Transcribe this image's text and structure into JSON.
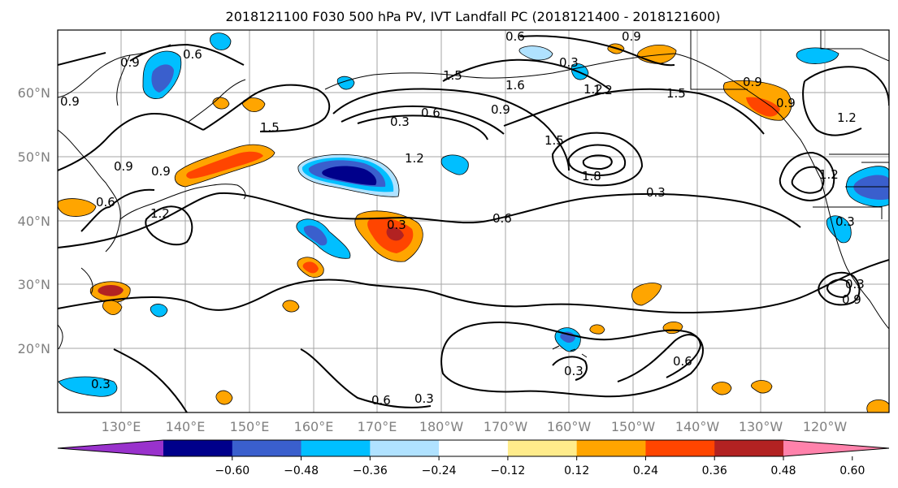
{
  "title": "2018121100 F030 500 hPa PV, IVT Landfall PC (2018121400 - 2018121600)",
  "lat_labels": [
    "60°N",
    "50°N",
    "40°N",
    "30°N",
    "20°N"
  ],
  "lon_labels": [
    "130°E",
    "140°E",
    "150°E",
    "160°E",
    "170°E",
    "180°W",
    "170°W",
    "160°W",
    "150°W",
    "140°W",
    "130°W",
    "120°W"
  ],
  "contour_labels": [
    "0.9",
    "0.6",
    "0.6",
    "0.9",
    "0.3",
    "1.5",
    "1.6",
    "1.2",
    "1.5",
    "0.3",
    "0.6",
    "0.9",
    "1.5",
    "0.9",
    "1.2",
    "0.9",
    "1.2",
    "1.2",
    "1.8",
    "0.3",
    "0.6",
    "0.3",
    "0.3",
    "0.9",
    "0.6",
    "0.3",
    "0.6",
    "0.3",
    "0.3",
    "0.9",
    "0.6",
    "0.9",
    "1.2",
    "1.2",
    "0.3",
    "1.5",
    "0.9"
  ],
  "colorbar": {
    "ticks": [
      "−0.60",
      "−0.48",
      "−0.36",
      "−0.24",
      "−0.12",
      "0.12",
      "0.24",
      "0.36",
      "0.48",
      "0.60"
    ],
    "colors": [
      "#9932cc",
      "#00008b",
      "#3a5fcd",
      "#00bfff",
      "#b0e2ff",
      "#ffffff",
      "#ffec8b",
      "#ffa500",
      "#ff4500",
      "#b22222",
      "#ff82ab"
    ]
  },
  "colors": {
    "negative_strong": "#00008b",
    "positive_strong": "#ff4500",
    "grid": "#a6a6a6"
  }
}
